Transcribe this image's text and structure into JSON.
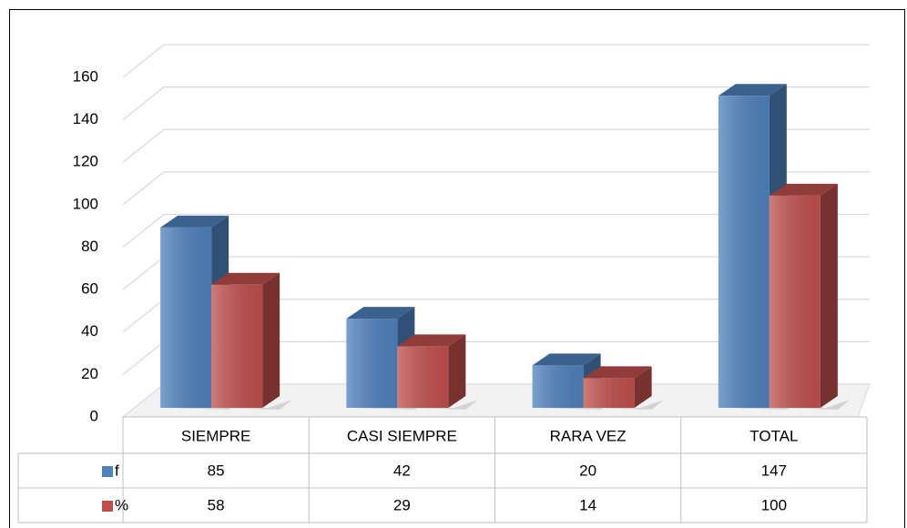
{
  "chart_data": {
    "type": "bar3d",
    "categories": [
      "SIEMPRE",
      "CASI SIEMPRE",
      "RARA VEZ",
      "TOTAL"
    ],
    "series": [
      {
        "name": "f",
        "color": "#4f81bd",
        "values": [
          85,
          42,
          20,
          147
        ]
      },
      {
        "name": "%",
        "color": "#c0504d",
        "values": [
          58,
          29,
          14,
          100
        ]
      }
    ],
    "ylim": [
      0,
      160
    ],
    "yticks": [
      0,
      20,
      40,
      60,
      80,
      100,
      120,
      140,
      160
    ],
    "grid": true
  }
}
